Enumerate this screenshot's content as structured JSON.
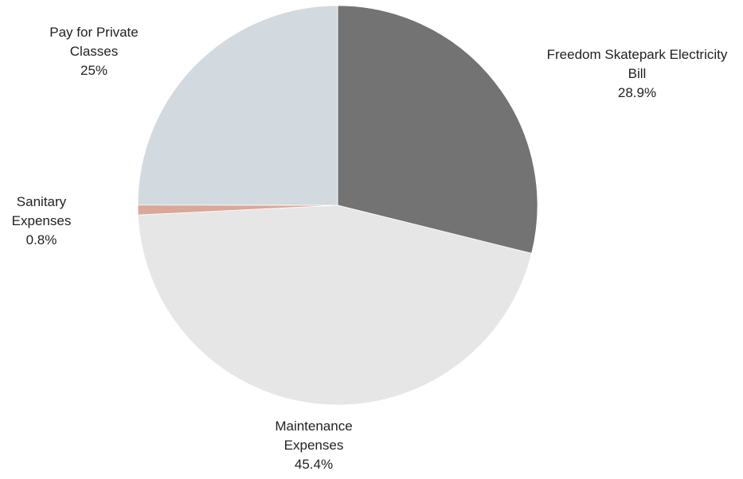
{
  "chart_data": {
    "type": "pie",
    "title": "",
    "start_angle_deg": 0,
    "direction": "clockwise",
    "slices": [
      {
        "label_lines": [
          "Freedom Skatepark Electricity",
          "Bill"
        ],
        "value": 28.9,
        "display": "28.9%",
        "color": "#737373"
      },
      {
        "label_lines": [
          "Maintenance",
          "Expenses"
        ],
        "value": 45.4,
        "display": "45.4%",
        "color": "#e6e6e6"
      },
      {
        "label_lines": [
          "Sanitary",
          "Expenses"
        ],
        "value": 0.8,
        "display": "0.8%",
        "color": "#d9a898"
      },
      {
        "label_lines": [
          "Pay for Private",
          "Classes"
        ],
        "value": 25,
        "display": "25%",
        "color": "#d2d9df"
      }
    ]
  }
}
